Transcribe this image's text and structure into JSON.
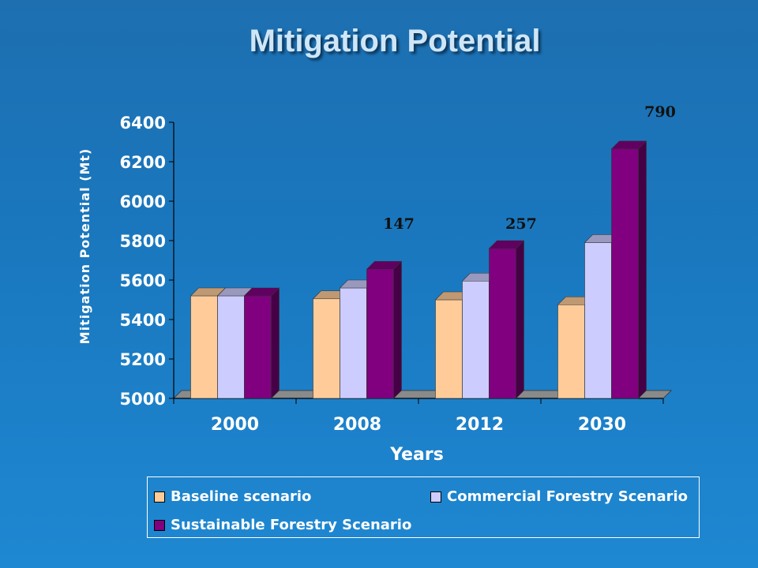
{
  "title": "Mitigation Potential",
  "chart_data": {
    "type": "bar",
    "categories": [
      "2000",
      "2008",
      "2012",
      "2030"
    ],
    "series": [
      {
        "name": "Baseline scenario",
        "color": "#ffcc99",
        "values": [
          5520,
          5505,
          5500,
          5475
        ]
      },
      {
        "name": "Commercial Forestry Scenario",
        "color": "#ccccff",
        "values": [
          5520,
          5560,
          5595,
          5790
        ]
      },
      {
        "name": "Sustainable Forestry Scenario",
        "color": "#800080",
        "values": [
          5520,
          5655,
          5760,
          6265
        ]
      }
    ],
    "xlabel": "Years",
    "ylabel": "Mitigation Potential (Mt)",
    "ylim": [
      5000,
      6400
    ],
    "yticks": [
      5000,
      5200,
      5400,
      5600,
      5800,
      6000,
      6200,
      6400
    ],
    "annotations": [
      {
        "category": "2008",
        "text": "147"
      },
      {
        "category": "2012",
        "text": "257"
      },
      {
        "category": "2030",
        "text": "790"
      }
    ],
    "legend_position": "bottom",
    "grid": false
  }
}
